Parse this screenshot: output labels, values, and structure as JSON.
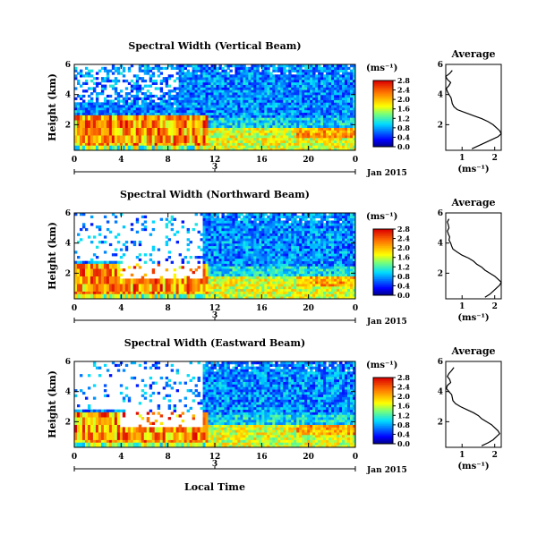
{
  "xlabel": "Local Time",
  "chart_data": [
    {
      "type": "heatmap",
      "title": "Spectral Width (Vertical Beam)",
      "ylabel": "Height (km)",
      "x_ticks": [
        "0",
        "4",
        "8",
        "12",
        "16",
        "20",
        "0"
      ],
      "xlim": [
        0,
        24
      ],
      "y_ticks": [
        "2",
        "4",
        "6"
      ],
      "ylim": [
        0.3,
        6
      ],
      "date_marker": "3",
      "date_label": "Jan 2015",
      "colorbar": {
        "unit": "(ms⁻¹)",
        "ticks": [
          "0.0",
          "0.4",
          "0.8",
          "1.2",
          "1.6",
          "2.0",
          "2.4",
          "2.8"
        ],
        "range": [
          0,
          2.8
        ]
      },
      "profile": {
        "title": "Average",
        "xlabel": "(ms⁻¹)",
        "x_ticks": [
          "1",
          "2"
        ],
        "xlim": [
          0.5,
          2.2
        ],
        "y_ticks": [
          "2",
          "4",
          "6"
        ],
        "ylim": [
          0.3,
          6
        ],
        "height": [
          0.4,
          0.6,
          0.8,
          1.0,
          1.2,
          1.4,
          1.6,
          1.8,
          2.0,
          2.2,
          2.4,
          2.6,
          2.8,
          3.0,
          3.2,
          3.4,
          3.6,
          3.8,
          4.0,
          4.2,
          4.4,
          4.6,
          4.8,
          5.0,
          5.2,
          5.4,
          5.6
        ],
        "width": [
          1.3,
          1.5,
          1.7,
          1.9,
          2.1,
          2.2,
          2.15,
          2.05,
          1.95,
          1.8,
          1.6,
          1.35,
          1.1,
          0.85,
          0.75,
          0.7,
          0.68,
          0.66,
          0.6,
          0.55,
          0.52,
          0.6,
          0.65,
          0.55,
          0.5,
          0.62,
          0.7
        ]
      }
    },
    {
      "type": "heatmap",
      "title": "Spectral Width (Northward Beam)",
      "ylabel": "Height (km)",
      "x_ticks": [
        "0",
        "4",
        "8",
        "12",
        "16",
        "20",
        "0"
      ],
      "xlim": [
        0,
        24
      ],
      "y_ticks": [
        "2",
        "4",
        "6"
      ],
      "ylim": [
        0.3,
        6
      ],
      "date_marker": "3",
      "date_label": "Jan 2015",
      "colorbar": {
        "unit": "(ms⁻¹)",
        "ticks": [
          "0.0",
          "0.4",
          "0.8",
          "1.2",
          "1.6",
          "2.0",
          "2.4",
          "2.8"
        ],
        "range": [
          0,
          2.8
        ]
      },
      "profile": {
        "title": "Average",
        "xlabel": "(ms⁻¹)",
        "x_ticks": [
          "1",
          "2"
        ],
        "xlim": [
          0.5,
          2.2
        ],
        "y_ticks": [
          "2",
          "4",
          "6"
        ],
        "ylim": [
          0.3,
          6
        ],
        "height": [
          0.4,
          0.6,
          0.8,
          1.0,
          1.2,
          1.4,
          1.6,
          1.8,
          2.0,
          2.2,
          2.4,
          2.6,
          2.8,
          3.0,
          3.2,
          3.4,
          3.6,
          3.8,
          4.0,
          4.2,
          4.4,
          4.6,
          4.8,
          5.0,
          5.2,
          5.4,
          5.6
        ],
        "width": [
          1.7,
          1.85,
          1.95,
          2.05,
          2.15,
          2.2,
          2.1,
          2.0,
          1.85,
          1.7,
          1.6,
          1.45,
          1.35,
          1.2,
          1.0,
          0.85,
          0.72,
          0.68,
          0.65,
          0.6,
          0.62,
          0.58,
          0.55,
          0.6,
          0.58,
          0.55,
          0.6
        ]
      }
    },
    {
      "type": "heatmap",
      "title": "Spectral Width (Eastward Beam)",
      "ylabel": "Height (km)",
      "x_ticks": [
        "0",
        "4",
        "8",
        "12",
        "16",
        "20",
        "0"
      ],
      "xlim": [
        0,
        24
      ],
      "y_ticks": [
        "2",
        "4",
        "6"
      ],
      "ylim": [
        0.3,
        6
      ],
      "date_marker": "3",
      "date_label": "Jan 2015",
      "colorbar": {
        "unit": "(ms⁻¹)",
        "ticks": [
          "0.0",
          "0.4",
          "0.8",
          "1.2",
          "1.6",
          "2.0",
          "2.4",
          "2.8"
        ],
        "range": [
          0,
          2.8
        ]
      },
      "profile": {
        "title": "Average",
        "xlabel": "(ms⁻¹)",
        "x_ticks": [
          "1",
          "2"
        ],
        "xlim": [
          0.5,
          2.2
        ],
        "y_ticks": [
          "2",
          "4",
          "6"
        ],
        "ylim": [
          0.3,
          6
        ],
        "height": [
          0.4,
          0.6,
          0.8,
          1.0,
          1.2,
          1.4,
          1.6,
          1.8,
          2.0,
          2.2,
          2.4,
          2.6,
          2.8,
          3.0,
          3.2,
          3.4,
          3.6,
          3.8,
          4.0,
          4.2,
          4.4,
          4.6,
          4.8,
          5.0,
          5.2,
          5.4,
          5.6
        ],
        "width": [
          1.6,
          1.8,
          1.95,
          2.05,
          2.15,
          2.1,
          2.0,
          1.9,
          1.75,
          1.6,
          1.5,
          1.35,
          1.15,
          0.95,
          0.8,
          0.72,
          0.7,
          0.68,
          0.6,
          0.52,
          0.55,
          0.65,
          0.62,
          0.55,
          0.6,
          0.68,
          0.75
        ]
      }
    }
  ]
}
